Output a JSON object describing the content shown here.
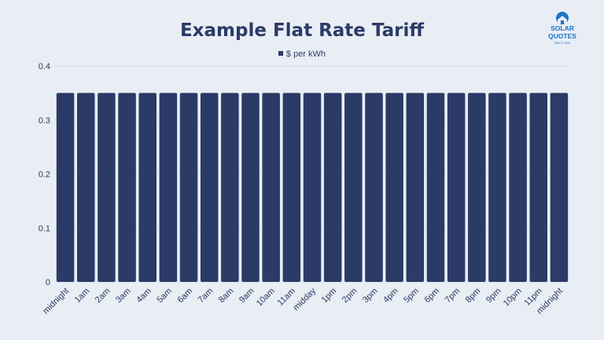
{
  "chart_data": {
    "type": "bar",
    "title": "Example Flat Rate Tariff",
    "xlabel": "",
    "ylabel": "",
    "ylim": [
      0,
      0.4
    ],
    "yticks": [
      "0",
      "0.1",
      "0.2",
      "0.3",
      "0.4"
    ],
    "categories": [
      "midnight",
      "1am",
      "2am",
      "3am",
      "4am",
      "5am",
      "6am",
      "7am",
      "8am",
      "9am",
      "10am",
      "11am",
      "midday",
      "1pm",
      "2pm",
      "3pm",
      "4pm",
      "5pm",
      "6pm",
      "7pm",
      "8pm",
      "9pm",
      "10pm",
      "11pm",
      "midnight"
    ],
    "series": [
      {
        "name": "$ per kWh",
        "values": [
          0.35,
          0.35,
          0.35,
          0.35,
          0.35,
          0.35,
          0.35,
          0.35,
          0.35,
          0.35,
          0.35,
          0.35,
          0.35,
          0.35,
          0.35,
          0.35,
          0.35,
          0.35,
          0.35,
          0.35,
          0.35,
          0.35,
          0.35,
          0.35,
          0.35
        ]
      }
    ],
    "grid": true,
    "legend_position": "top-center",
    "bar_color": "#2b3a67"
  },
  "logo": {
    "line1": "SOLAR",
    "line2": "QUOTES",
    "tagline": "SINCE 2009",
    "color": "#1a73c9",
    "icon": "sun-house-icon"
  }
}
